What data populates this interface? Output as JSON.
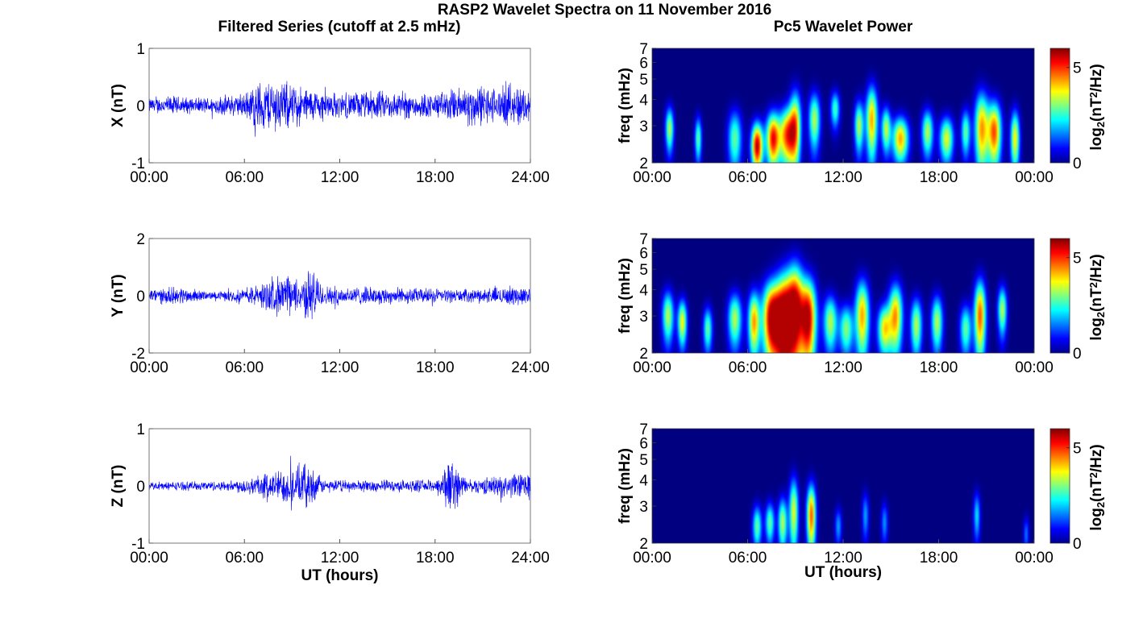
{
  "title": "RASP2 Wavelet Spectra on 11 November 2016",
  "left_title": "Filtered Series (cutoff at 2.5 mHz)",
  "right_title": "Pc5 Wavelet Power",
  "colors": {
    "trace": "#0000ff",
    "background": "#00008f"
  },
  "chart_data": [
    {
      "id": "x-series",
      "type": "line",
      "ylabel": "X (nT)",
      "xlabel": "",
      "x_ticks": [
        "00:00",
        "06:00",
        "12:00",
        "18:00",
        "24:00"
      ],
      "xlim": [
        0,
        24
      ],
      "ylim": [
        -1,
        1
      ],
      "y_ticks": [
        "1",
        "0",
        "-1"
      ],
      "series": [
        {
          "values": [
            0.0,
            0.0,
            0.0,
            0.0,
            0.0
          ],
          "envelope_amplitude": [
            [
              0,
              0.15
            ],
            [
              1.5,
              0.2
            ],
            [
              3,
              0.15
            ],
            [
              6,
              0.25
            ],
            [
              6.8,
              0.5
            ],
            [
              8,
              0.55
            ],
            [
              9,
              0.45
            ],
            [
              10,
              0.35
            ],
            [
              12,
              0.25
            ],
            [
              14,
              0.3
            ],
            [
              18,
              0.25
            ],
            [
              20.5,
              0.45
            ],
            [
              22,
              0.35
            ],
            [
              23.2,
              0.45
            ],
            [
              24,
              0.3
            ]
          ]
        }
      ]
    },
    {
      "id": "y-series",
      "type": "line",
      "ylabel": "Y (nT)",
      "xlabel": "",
      "x_ticks": [
        "00:00",
        "06:00",
        "12:00",
        "18:00",
        "24:00"
      ],
      "xlim": [
        0,
        24
      ],
      "ylim": [
        -2,
        2
      ],
      "y_ticks": [
        "2",
        "0",
        "-2"
      ],
      "series": [
        {
          "values": [
            0.0,
            0.0,
            0.0,
            0.0,
            0.0
          ],
          "envelope_amplitude": [
            [
              0,
              0.3
            ],
            [
              2,
              0.35
            ],
            [
              4,
              0.15
            ],
            [
              6,
              0.3
            ],
            [
              7,
              0.5
            ],
            [
              8.5,
              0.9
            ],
            [
              9.5,
              0.6
            ],
            [
              10.2,
              1.2
            ],
            [
              11,
              0.4
            ],
            [
              14,
              0.35
            ],
            [
              18,
              0.3
            ],
            [
              20,
              0.25
            ],
            [
              23,
              0.4
            ],
            [
              24,
              0.35
            ]
          ]
        }
      ]
    },
    {
      "id": "z-series",
      "type": "line",
      "ylabel": "Z (nT)",
      "xlabel": "UT (hours)",
      "x_ticks": [
        "00:00",
        "06:00",
        "12:00",
        "18:00",
        "24:00"
      ],
      "xlim": [
        0,
        24
      ],
      "ylim": [
        -1,
        1
      ],
      "y_ticks": [
        "1",
        "0",
        "-1"
      ],
      "series": [
        {
          "values": [
            0.0,
            0.0,
            0.0,
            0.0,
            0.0
          ],
          "envelope_amplitude": [
            [
              0,
              0.08
            ],
            [
              5,
              0.1
            ],
            [
              6.5,
              0.2
            ],
            [
              8.5,
              0.35
            ],
            [
              10,
              0.45
            ],
            [
              11,
              0.12
            ],
            [
              18,
              0.12
            ],
            [
              19,
              0.6
            ],
            [
              20,
              0.12
            ],
            [
              24,
              0.3
            ]
          ]
        }
      ]
    },
    {
      "id": "x-wavelet",
      "type": "heatmap",
      "ylabel": "freq (mHz)",
      "xlabel": "",
      "x_ticks": [
        "00:00",
        "06:00",
        "12:00",
        "18:00",
        "00:00"
      ],
      "xlim": [
        0,
        24
      ],
      "y_ticks": [
        "7",
        "6",
        "5",
        "4",
        "3",
        "2"
      ],
      "ylim": [
        2,
        7
      ],
      "y_scale": "log",
      "colorbar_label": "log",
      "colorbar_sub": "2",
      "colorbar_unit": "(nT",
      "colorbar_sup": "2",
      "colorbar_tail": "/Hz)",
      "colorbar_ticks": [
        "5",
        "0"
      ],
      "colorbar_range": [
        0,
        6
      ],
      "blobs": [
        [
          1.1,
          2.9,
          0.18,
          0.5,
          3.5
        ],
        [
          2.9,
          2.6,
          0.15,
          0.45,
          3.0
        ],
        [
          5.2,
          2.6,
          0.3,
          0.6,
          3.0
        ],
        [
          6.6,
          2.4,
          0.25,
          0.45,
          6.0
        ],
        [
          7.6,
          2.6,
          0.3,
          0.55,
          5.5
        ],
        [
          8.5,
          2.7,
          0.35,
          0.6,
          5.0
        ],
        [
          9.0,
          3.0,
          0.25,
          0.9,
          4.0
        ],
        [
          10.2,
          3.2,
          0.25,
          0.7,
          3.5
        ],
        [
          11.5,
          3.6,
          0.2,
          0.5,
          2.8
        ],
        [
          13.0,
          3.0,
          0.2,
          0.6,
          3.5
        ],
        [
          13.8,
          3.2,
          0.25,
          0.9,
          4.5
        ],
        [
          14.7,
          2.9,
          0.2,
          0.5,
          3.5
        ],
        [
          15.6,
          2.6,
          0.35,
          0.45,
          4.5
        ],
        [
          17.3,
          2.8,
          0.25,
          0.5,
          3.5
        ],
        [
          18.5,
          2.6,
          0.3,
          0.45,
          3.8
        ],
        [
          19.7,
          2.8,
          0.2,
          0.5,
          3.0
        ],
        [
          20.7,
          2.9,
          0.3,
          0.9,
          4.5
        ],
        [
          21.5,
          2.8,
          0.3,
          0.7,
          5.0
        ],
        [
          22.8,
          2.6,
          0.2,
          0.6,
          4.0
        ]
      ]
    },
    {
      "id": "y-wavelet",
      "type": "heatmap",
      "ylabel": "freq (mHz)",
      "xlabel": "",
      "x_ticks": [
        "00:00",
        "06:00",
        "12:00",
        "18:00",
        "00:00"
      ],
      "xlim": [
        0,
        24
      ],
      "y_ticks": [
        "7",
        "6",
        "5",
        "4",
        "3",
        "2"
      ],
      "ylim": [
        2,
        7
      ],
      "y_scale": "log",
      "colorbar_label": "log",
      "colorbar_sub": "2",
      "colorbar_unit": "(nT",
      "colorbar_sup": "2",
      "colorbar_tail": "/Hz)",
      "colorbar_ticks": [
        "5",
        "0"
      ],
      "colorbar_range": [
        0,
        6
      ],
      "blobs": [
        [
          1.0,
          3.0,
          0.25,
          0.6,
          3.5
        ],
        [
          1.9,
          2.8,
          0.2,
          0.5,
          4.0
        ],
        [
          3.5,
          2.6,
          0.2,
          0.45,
          3.0
        ],
        [
          5.2,
          2.9,
          0.3,
          0.6,
          3.5
        ],
        [
          6.4,
          2.8,
          0.25,
          0.7,
          4.5
        ],
        [
          7.5,
          2.9,
          0.4,
          0.9,
          6.0
        ],
        [
          8.3,
          2.8,
          0.4,
          1.2,
          6.5
        ],
        [
          9.0,
          3.2,
          0.35,
          1.3,
          5.5
        ],
        [
          9.8,
          2.9,
          0.35,
          1.0,
          6.0
        ],
        [
          11.2,
          2.8,
          0.3,
          0.6,
          3.5
        ],
        [
          12.2,
          2.6,
          0.3,
          0.5,
          3.2
        ],
        [
          13.2,
          3.0,
          0.3,
          0.9,
          4.5
        ],
        [
          14.6,
          2.6,
          0.3,
          0.5,
          4.0
        ],
        [
          15.3,
          3.0,
          0.3,
          0.8,
          4.5
        ],
        [
          16.6,
          2.7,
          0.25,
          0.6,
          3.5
        ],
        [
          17.9,
          2.8,
          0.25,
          0.6,
          3.5
        ],
        [
          19.7,
          2.6,
          0.25,
          0.5,
          3.0
        ],
        [
          20.6,
          3.0,
          0.25,
          0.9,
          5.0
        ],
        [
          22.0,
          3.2,
          0.2,
          0.6,
          3.5
        ]
      ]
    },
    {
      "id": "z-wavelet",
      "type": "heatmap",
      "ylabel": "freq (mHz)",
      "xlabel": "UT (hours)",
      "x_ticks": [
        "00:00",
        "06:00",
        "12:00",
        "18:00",
        "00:00"
      ],
      "xlim": [
        0,
        24
      ],
      "y_ticks": [
        "7",
        "6",
        "5",
        "4",
        "3",
        "2"
      ],
      "ylim": [
        2,
        7
      ],
      "y_scale": "log",
      "colorbar_label": "log",
      "colorbar_sub": "2",
      "colorbar_unit": "(nT",
      "colorbar_sup": "2",
      "colorbar_tail": "/Hz)",
      "colorbar_ticks": [
        "5",
        "0"
      ],
      "colorbar_range": [
        0,
        6
      ],
      "blobs": [
        [
          6.6,
          2.4,
          0.2,
          0.4,
          3.0
        ],
        [
          7.4,
          2.5,
          0.2,
          0.4,
          3.0
        ],
        [
          8.2,
          2.5,
          0.2,
          0.5,
          3.5
        ],
        [
          8.9,
          2.8,
          0.2,
          0.8,
          3.8
        ],
        [
          10.0,
          2.7,
          0.2,
          0.7,
          5.0
        ],
        [
          11.7,
          2.4,
          0.15,
          0.35,
          1.8
        ],
        [
          13.4,
          2.7,
          0.15,
          0.5,
          1.8
        ],
        [
          14.6,
          2.5,
          0.15,
          0.4,
          1.7
        ],
        [
          20.4,
          2.7,
          0.15,
          0.5,
          2.2
        ],
        [
          23.5,
          2.2,
          0.12,
          0.3,
          1.5
        ]
      ]
    }
  ]
}
